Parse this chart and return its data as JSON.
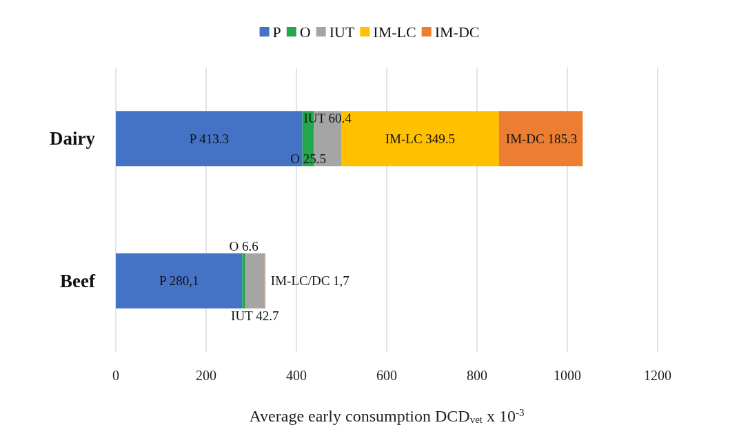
{
  "chart_data": {
    "type": "bar",
    "orientation": "horizontal",
    "stacked": true,
    "categories": [
      "Dairy",
      "Beef"
    ],
    "xlabel": "Average early consumption DCD$_{vet}$ x 10$^{-3}$",
    "xlim": [
      0,
      1200
    ],
    "xticks": [
      0,
      200,
      400,
      600,
      800,
      1000,
      1200
    ],
    "grid": "x",
    "legend": "top",
    "series": [
      {
        "name": "P",
        "color": "#4472c4",
        "values": [
          413.3,
          280.1
        ],
        "value_labels": [
          "P 413.3",
          "P 280,1"
        ]
      },
      {
        "name": "O",
        "color": "#22a84a",
        "values": [
          25.5,
          6.6
        ],
        "value_labels": [
          "O 25.5",
          "O 6.6"
        ]
      },
      {
        "name": "IUT",
        "color": "#a5a5a5",
        "values": [
          60.4,
          42.7
        ],
        "value_labels": [
          "IUT 60.4",
          "IUT 42.7"
        ]
      },
      {
        "name": "IM-LC",
        "color": "#ffc000",
        "values": [
          349.5,
          null
        ],
        "value_labels": [
          "IM-LC 349.5",
          null
        ]
      },
      {
        "name": "IM-DC",
        "color": "#ed7d31",
        "values": [
          185.3,
          1.7
        ],
        "value_labels": [
          "IM-DC 185.3",
          "IM-LC/DC 1,7"
        ]
      }
    ]
  }
}
